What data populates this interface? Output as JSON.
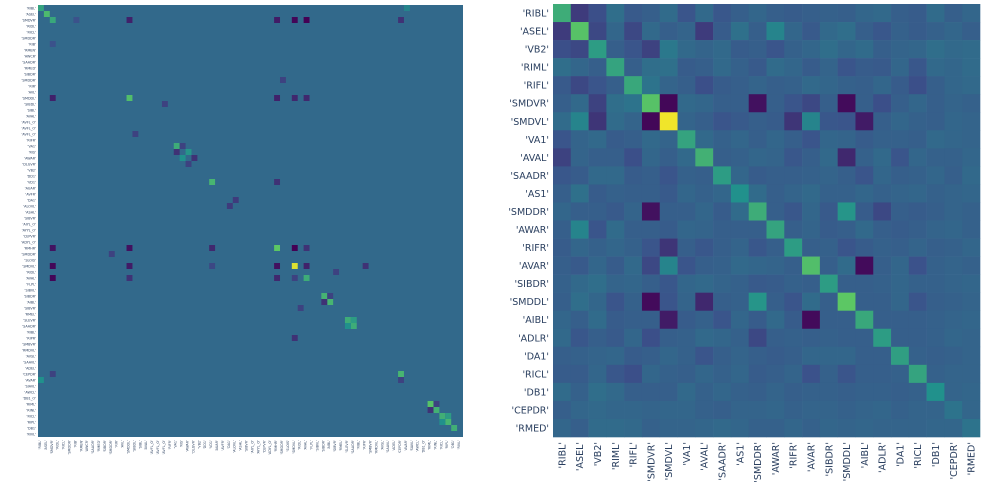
{
  "chart_data": [
    {
      "type": "heatmap",
      "name": "left",
      "n": 72,
      "tick_labels_y": [
        "'RIBL'",
        "'ASEL'",
        "'SMDVR'",
        "'RIDL'",
        "'RICL'",
        "'SMDDR'",
        "'RIB'",
        "'RMEN'",
        "'AWCR'",
        "'SAADR'",
        "'RMED'",
        "'SIBDR'",
        "'SMDDR'",
        "'RIR'",
        "'AVL'",
        "'SMDDL'",
        "'SIBDL'",
        "'SIBL'",
        "'AVAL'",
        "'AVFL_O'",
        "'AVFL_O'",
        "'AVFL_O'",
        "'RIFR'",
        "'VA1'",
        "'RIS'",
        "'AWAR'",
        "'DLGVR'",
        "'VB2'",
        "'DD1'",
        "'VD1'",
        "'AUAR'",
        "'AVFR'",
        "'DA1'",
        "'ALOVL'",
        "'ASHL'",
        "'SIBVR'",
        "'AIYL_O'",
        "'AYYL_O'",
        "'CEPVR'",
        "'ADYL_O'",
        "'RMHR'",
        "'SMDDR'",
        "'SLOIS'",
        "'SMDVL'",
        "'RIDL'",
        "'AVAL'",
        "'FLPL'",
        "'SIBVL'",
        "'SIBDR'",
        "'AIBL'",
        "'SIBVR'",
        "'RMEL'",
        "'SLEVR'",
        "'SAADR'",
        "'RIBL'",
        "'RIPR'",
        "'SMBVR'",
        "'RMDVL'",
        "'AVSL'",
        "'SAAVL'",
        "'ADEL'",
        "'CEPDR'",
        "'AVAR'",
        "'SIAVL'",
        "'AWCL'",
        "'DB1_O'",
        "'RIML'",
        "'RINL'",
        "'RICL'",
        "'RIPL'",
        "'DB1'",
        "'RIVL'"
      ],
      "tick_labels_x": [
        "'RIBL'",
        "'ASEL'",
        "'SMDVR'",
        "'RIDL'",
        "'RICL'",
        "'SMDDR'",
        "'RIB'",
        "'RMEN'",
        "'AWCR'",
        "'SAADR'",
        "'RMED'",
        "'SIBDR'",
        "'SMDDR'",
        "'RIR'",
        "'AVL'",
        "'SMDDL'",
        "'SIBDL'",
        "'SIBL'",
        "'AVAL'",
        "'AVFL_O'",
        "'AVFL_O'",
        "'AVFL_O'",
        "'RIFR'",
        "'VA1'",
        "'RIS'",
        "'AWAR'",
        "'DLGVR'",
        "'VB2'",
        "'DD1'",
        "'VD1'",
        "'AUAR'",
        "'AVFR'",
        "'DA1'",
        "'ALOVL'",
        "'ASHL'",
        "'SIBVR'",
        "'AIYL_O'",
        "'AYYL_O'",
        "'CEPVR'",
        "'ADYL_O'",
        "'RMHR'",
        "'SMDDR'",
        "'SLOIS'",
        "'SMDVL'",
        "'RIDL'",
        "'AVAL'",
        "'FLPL'",
        "'SIBVL'",
        "'SIBDR'",
        "'AIBL'",
        "'SIBVR'",
        "'RMEL'",
        "'SLEVR'",
        "'SAADR'",
        "'RIBL'",
        "'RIPR'",
        "'SMBVR'",
        "'RMDVL'",
        "'AVSL'",
        "'SAAVL'",
        "'ADEL'",
        "'CEPDR'",
        "'AVAR'",
        "'SIAVL'",
        "'AWCL'",
        "'DB1_O'",
        "'RIML'",
        "'RINL'",
        "'RICL'",
        "'RIPL'",
        "'DB1'",
        "'RIVL'"
      ],
      "cells": [
        [
          0,
          0,
          0.58
        ],
        [
          1,
          1,
          0.68
        ],
        [
          2,
          2,
          0.6
        ],
        [
          15,
          15,
          0.7
        ],
        [
          23,
          23,
          0.62
        ],
        [
          29,
          29,
          0.66
        ],
        [
          40,
          40,
          0.74
        ],
        [
          43,
          43,
          0.95
        ],
        [
          45,
          45,
          0.62
        ],
        [
          48,
          48,
          0.65
        ],
        [
          49,
          49,
          0.66
        ],
        [
          52,
          52,
          0.62
        ],
        [
          53,
          53,
          0.62
        ],
        [
          61,
          61,
          0.66
        ],
        [
          66,
          66,
          0.72
        ],
        [
          67,
          67,
          0.64
        ],
        [
          68,
          68,
          0.63
        ],
        [
          69,
          69,
          0.66
        ],
        [
          70,
          70,
          0.63
        ],
        [
          2,
          15,
          0.1
        ],
        [
          15,
          2,
          0.1
        ],
        [
          2,
          43,
          0.02
        ],
        [
          43,
          2,
          0.02
        ],
        [
          2,
          40,
          0.08
        ],
        [
          40,
          2,
          0.06
        ],
        [
          2,
          45,
          0.0
        ],
        [
          45,
          2,
          0.02
        ],
        [
          2,
          61,
          0.15
        ],
        [
          61,
          2,
          0.2
        ],
        [
          15,
          40,
          0.1
        ],
        [
          40,
          15,
          0.05
        ],
        [
          15,
          43,
          0.12
        ],
        [
          43,
          15,
          0.08
        ],
        [
          15,
          45,
          0.12
        ],
        [
          45,
          15,
          0.15
        ],
        [
          40,
          43,
          0.0
        ],
        [
          43,
          40,
          0.05
        ],
        [
          40,
          45,
          0.15
        ],
        [
          45,
          40,
          0.12
        ],
        [
          43,
          45,
          0.1
        ],
        [
          45,
          43,
          0.2
        ],
        [
          23,
          24,
          0.2
        ],
        [
          24,
          23,
          0.15
        ],
        [
          25,
          26,
          0.15
        ],
        [
          26,
          25,
          0.2
        ],
        [
          24,
          25,
          0.52
        ],
        [
          25,
          24,
          0.5
        ],
        [
          48,
          49,
          0.2
        ],
        [
          49,
          48,
          0.15
        ],
        [
          52,
          53,
          0.55
        ],
        [
          53,
          52,
          0.5
        ],
        [
          66,
          67,
          0.2
        ],
        [
          67,
          66,
          0.15
        ],
        [
          68,
          69,
          0.55
        ],
        [
          69,
          68,
          0.5
        ],
        [
          62,
          0,
          0.5
        ],
        [
          0,
          62,
          0.45
        ],
        [
          62,
          61,
          0.2
        ],
        [
          40,
          29,
          0.12
        ],
        [
          29,
          40,
          0.15
        ],
        [
          43,
          29,
          0.22
        ],
        [
          41,
          12,
          0.2
        ],
        [
          12,
          41,
          0.2
        ],
        [
          55,
          43,
          0.15
        ],
        [
          43,
          55,
          0.15
        ],
        [
          50,
          44,
          0.2
        ],
        [
          44,
          50,
          0.2
        ],
        [
          6,
          2,
          0.25
        ],
        [
          2,
          6,
          0.25
        ],
        [
          21,
          16,
          0.2
        ],
        [
          16,
          21,
          0.2
        ],
        [
          32,
          33,
          0.18
        ],
        [
          33,
          32,
          0.18
        ]
      ],
      "colorscale": [
        "#440154",
        "#3b528b",
        "#21918c",
        "#5ec962",
        "#fde725"
      ],
      "base_value": 0.34,
      "xlabel": "",
      "ylabel": "",
      "title": ""
    },
    {
      "type": "heatmap",
      "name": "right",
      "n": 24,
      "labels": [
        "'RIBL'",
        "'ASEL'",
        "'VB2'",
        "'RIML'",
        "'RIFL'",
        "'SMDVR'",
        "'SMDVL'",
        "'VA1'",
        "'AVAL'",
        "'SAADR'",
        "'AS1'",
        "'SMDDR'",
        "'AWAR'",
        "'RIFR'",
        "'AVAR'",
        "'SIBDR'",
        "'SMDDL'",
        "'AIBL'",
        "'ADLR'",
        "'DA1'",
        "'RICL'",
        "'DB1'",
        "'CEPDR'",
        "'RMED'"
      ],
      "matrix": [
        [
          0.62,
          0.18,
          0.24,
          0.36,
          0.28,
          0.3,
          0.35,
          0.26,
          0.34,
          0.27,
          0.3,
          0.33,
          0.3,
          0.29,
          0.3,
          0.31,
          0.3,
          0.33,
          0.34,
          0.3,
          0.29,
          0.35,
          0.3,
          0.33
        ],
        [
          0.18,
          0.72,
          0.22,
          0.33,
          0.22,
          0.34,
          0.3,
          0.32,
          0.18,
          0.29,
          0.37,
          0.3,
          0.45,
          0.33,
          0.28,
          0.34,
          0.36,
          0.3,
          0.27,
          0.31,
          0.29,
          0.31,
          0.33,
          0.3
        ],
        [
          0.24,
          0.22,
          0.55,
          0.3,
          0.26,
          0.2,
          0.4,
          0.34,
          0.32,
          0.34,
          0.29,
          0.3,
          0.26,
          0.31,
          0.33,
          0.36,
          0.33,
          0.35,
          0.3,
          0.32,
          0.33,
          0.36,
          0.34,
          0.35
        ],
        [
          0.36,
          0.33,
          0.3,
          0.58,
          0.3,
          0.36,
          0.37,
          0.29,
          0.3,
          0.34,
          0.31,
          0.28,
          0.35,
          0.33,
          0.29,
          0.32,
          0.26,
          0.29,
          0.28,
          0.33,
          0.27,
          0.34,
          0.33,
          0.35
        ],
        [
          0.28,
          0.22,
          0.26,
          0.3,
          0.6,
          0.38,
          0.32,
          0.3,
          0.24,
          0.29,
          0.3,
          0.32,
          0.3,
          0.31,
          0.34,
          0.33,
          0.31,
          0.3,
          0.33,
          0.29,
          0.24,
          0.3,
          0.33,
          0.34
        ],
        [
          0.3,
          0.34,
          0.2,
          0.36,
          0.38,
          0.72,
          0.02,
          0.34,
          0.33,
          0.3,
          0.3,
          0.05,
          0.3,
          0.26,
          0.22,
          0.3,
          0.03,
          0.3,
          0.24,
          0.3,
          0.33,
          0.3,
          0.32,
          0.31
        ],
        [
          0.35,
          0.45,
          0.16,
          0.35,
          0.32,
          0.02,
          0.98,
          0.32,
          0.3,
          0.26,
          0.28,
          0.3,
          0.29,
          0.16,
          0.45,
          0.27,
          0.26,
          0.08,
          0.3,
          0.33,
          0.31,
          0.3,
          0.33,
          0.32
        ],
        [
          0.26,
          0.32,
          0.34,
          0.29,
          0.3,
          0.34,
          0.32,
          0.58,
          0.34,
          0.31,
          0.33,
          0.3,
          0.33,
          0.3,
          0.26,
          0.33,
          0.32,
          0.29,
          0.31,
          0.31,
          0.3,
          0.34,
          0.33,
          0.32
        ],
        [
          0.2,
          0.32,
          0.3,
          0.3,
          0.24,
          0.33,
          0.3,
          0.34,
          0.64,
          0.3,
          0.31,
          0.33,
          0.32,
          0.27,
          0.3,
          0.34,
          0.12,
          0.31,
          0.34,
          0.26,
          0.33,
          0.31,
          0.31,
          0.33
        ],
        [
          0.27,
          0.29,
          0.34,
          0.34,
          0.29,
          0.3,
          0.26,
          0.31,
          0.3,
          0.55,
          0.33,
          0.29,
          0.3,
          0.3,
          0.31,
          0.32,
          0.3,
          0.26,
          0.33,
          0.3,
          0.31,
          0.33,
          0.3,
          0.34
        ],
        [
          0.3,
          0.37,
          0.29,
          0.31,
          0.3,
          0.3,
          0.28,
          0.33,
          0.31,
          0.33,
          0.5,
          0.35,
          0.3,
          0.32,
          0.34,
          0.31,
          0.31,
          0.33,
          0.31,
          0.32,
          0.33,
          0.31,
          0.32,
          0.33
        ],
        [
          0.33,
          0.3,
          0.3,
          0.28,
          0.32,
          0.05,
          0.3,
          0.3,
          0.33,
          0.29,
          0.35,
          0.62,
          0.3,
          0.27,
          0.33,
          0.28,
          0.52,
          0.29,
          0.22,
          0.3,
          0.29,
          0.3,
          0.32,
          0.31
        ],
        [
          0.3,
          0.45,
          0.26,
          0.35,
          0.3,
          0.3,
          0.29,
          0.33,
          0.32,
          0.3,
          0.3,
          0.3,
          0.58,
          0.3,
          0.32,
          0.29,
          0.3,
          0.34,
          0.3,
          0.29,
          0.3,
          0.32,
          0.33,
          0.31
        ],
        [
          0.29,
          0.33,
          0.31,
          0.33,
          0.31,
          0.26,
          0.16,
          0.3,
          0.27,
          0.3,
          0.32,
          0.27,
          0.3,
          0.55,
          0.3,
          0.31,
          0.26,
          0.29,
          0.31,
          0.3,
          0.32,
          0.3,
          0.31,
          0.33
        ],
        [
          0.3,
          0.28,
          0.33,
          0.29,
          0.34,
          0.22,
          0.45,
          0.26,
          0.3,
          0.31,
          0.34,
          0.33,
          0.32,
          0.3,
          0.7,
          0.3,
          0.35,
          0.03,
          0.3,
          0.33,
          0.25,
          0.31,
          0.32,
          0.31
        ],
        [
          0.31,
          0.34,
          0.36,
          0.32,
          0.33,
          0.3,
          0.27,
          0.33,
          0.34,
          0.32,
          0.31,
          0.28,
          0.29,
          0.31,
          0.3,
          0.55,
          0.3,
          0.3,
          0.31,
          0.33,
          0.31,
          0.31,
          0.32,
          0.33
        ],
        [
          0.3,
          0.36,
          0.33,
          0.26,
          0.31,
          0.03,
          0.26,
          0.32,
          0.12,
          0.3,
          0.31,
          0.52,
          0.3,
          0.26,
          0.35,
          0.3,
          0.74,
          0.3,
          0.3,
          0.33,
          0.26,
          0.3,
          0.31,
          0.32
        ],
        [
          0.33,
          0.3,
          0.35,
          0.29,
          0.3,
          0.3,
          0.08,
          0.29,
          0.31,
          0.26,
          0.33,
          0.29,
          0.34,
          0.29,
          0.03,
          0.3,
          0.3,
          0.6,
          0.3,
          0.3,
          0.3,
          0.31,
          0.32,
          0.33
        ],
        [
          0.34,
          0.27,
          0.3,
          0.28,
          0.33,
          0.24,
          0.3,
          0.31,
          0.34,
          0.33,
          0.31,
          0.22,
          0.3,
          0.31,
          0.3,
          0.31,
          0.3,
          0.3,
          0.55,
          0.3,
          0.3,
          0.31,
          0.33,
          0.32
        ],
        [
          0.3,
          0.31,
          0.32,
          0.33,
          0.29,
          0.3,
          0.33,
          0.31,
          0.26,
          0.3,
          0.32,
          0.3,
          0.29,
          0.3,
          0.33,
          0.33,
          0.33,
          0.3,
          0.3,
          0.56,
          0.31,
          0.3,
          0.31,
          0.32
        ],
        [
          0.29,
          0.29,
          0.33,
          0.27,
          0.24,
          0.33,
          0.31,
          0.3,
          0.33,
          0.31,
          0.33,
          0.29,
          0.3,
          0.32,
          0.25,
          0.31,
          0.26,
          0.3,
          0.3,
          0.31,
          0.58,
          0.31,
          0.32,
          0.32
        ],
        [
          0.35,
          0.31,
          0.36,
          0.34,
          0.3,
          0.3,
          0.3,
          0.34,
          0.31,
          0.33,
          0.31,
          0.3,
          0.32,
          0.3,
          0.31,
          0.31,
          0.3,
          0.31,
          0.31,
          0.3,
          0.31,
          0.5,
          0.32,
          0.33
        ],
        [
          0.3,
          0.33,
          0.34,
          0.33,
          0.33,
          0.32,
          0.33,
          0.33,
          0.31,
          0.3,
          0.32,
          0.32,
          0.33,
          0.31,
          0.32,
          0.32,
          0.31,
          0.32,
          0.33,
          0.31,
          0.32,
          0.32,
          0.38,
          0.33
        ],
        [
          0.33,
          0.3,
          0.35,
          0.35,
          0.34,
          0.31,
          0.32,
          0.32,
          0.33,
          0.34,
          0.33,
          0.31,
          0.31,
          0.33,
          0.31,
          0.33,
          0.32,
          0.33,
          0.32,
          0.32,
          0.32,
          0.33,
          0.33,
          0.38
        ]
      ],
      "colorscale": [
        "#440154",
        "#3b528b",
        "#21918c",
        "#5ec962",
        "#fde725"
      ],
      "xlabel": "",
      "ylabel": "",
      "title": ""
    }
  ]
}
